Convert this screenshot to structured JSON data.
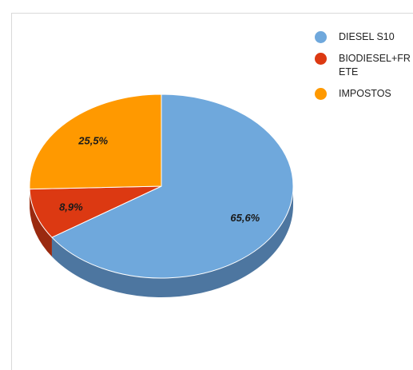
{
  "chart_data": {
    "type": "pie",
    "title": "",
    "categories": [
      "DIESEL S10",
      "BIODIESEL+FRETE",
      "IMPOSTOS"
    ],
    "values": [
      65.6,
      8.9,
      25.5
    ],
    "labels": [
      "65,6%",
      "8,9%",
      "25,5%"
    ],
    "colors": [
      "#6fa8dc",
      "#dc3912",
      "#ff9900"
    ],
    "side_colors": [
      "#4d76a0",
      "#9a2a10",
      "#b56e00"
    ],
    "legend_position": "right",
    "style": "3d"
  },
  "legend": {
    "items": [
      {
        "label": "DIESEL S10",
        "color": "#6fa8dc"
      },
      {
        "label": "BIODIESEL+FRETE",
        "color": "#dc3912"
      },
      {
        "label": "IMPOSTOS",
        "color": "#ff9900"
      }
    ]
  }
}
